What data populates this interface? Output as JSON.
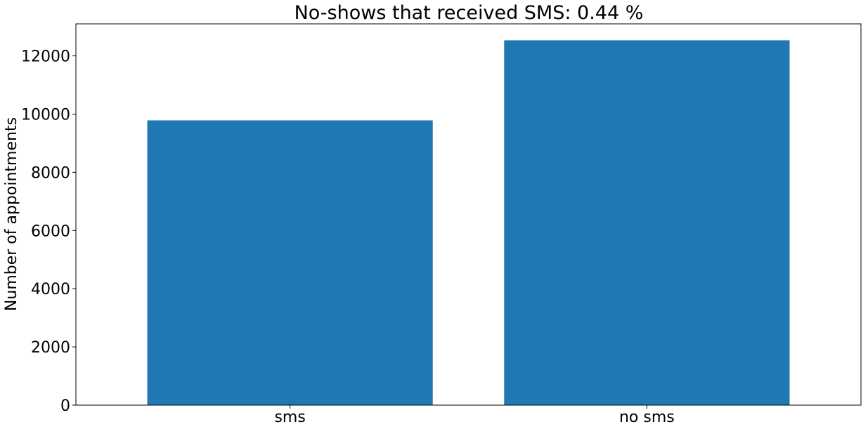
{
  "chart_data": {
    "type": "bar",
    "title": "No-shows that received SMS: 0.44 %",
    "xlabel": "",
    "ylabel": "Number of appointments",
    "categories": [
      "sms",
      "no sms"
    ],
    "values": [
      9784,
      12535
    ],
    "ylim": [
      0,
      13100
    ],
    "yticks": [
      0,
      2000,
      4000,
      6000,
      8000,
      10000,
      12000
    ],
    "ytick_labels": [
      "0",
      "2000",
      "4000",
      "6000",
      "8000",
      "10000",
      "12000"
    ],
    "grid": false,
    "legend": "none",
    "bar_color": "#1f77b4"
  }
}
